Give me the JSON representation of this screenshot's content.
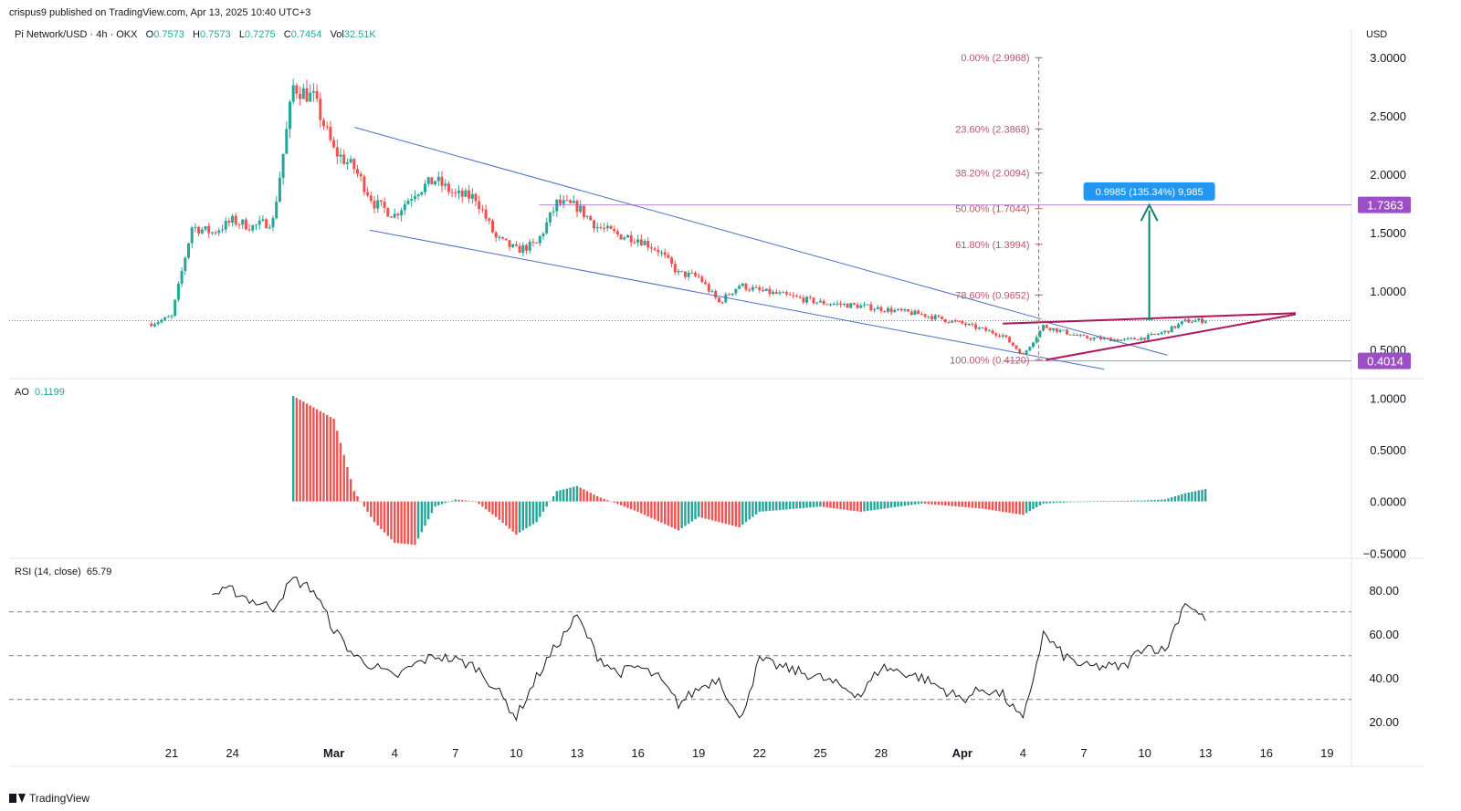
{
  "header": {
    "published": "crispus9 published on TradingView.com, Apr 13, 2025 10:40 UTC+3",
    "symbol": "Pi Network/USD · 4h · OKX",
    "open_label": "O",
    "open": "0.7573",
    "high_label": "H",
    "high": "0.7573",
    "low_label": "L",
    "low": "0.7275",
    "close_label": "C",
    "close": "0.7454",
    "vol_label": "Vol",
    "vol": "32.51K",
    "currency": "USD"
  },
  "brand": "TradingView",
  "colors": {
    "up": "#26a69a",
    "down": "#ef5350",
    "fib": "#b2596b",
    "channel": "#4a6fbf",
    "wedge": "#b0145c",
    "level": "#9c4fc4",
    "arrow": "#12806b",
    "measure": "#2196f3",
    "rsi": "#131722"
  },
  "chart_data": [
    {
      "type": "candlestick",
      "title": "Pi Network/USD · 4h · OKX",
      "x_ticks": [
        "21",
        "24",
        "Mar",
        "4",
        "7",
        "10",
        "13",
        "16",
        "19",
        "22",
        "25",
        "28",
        "Apr",
        "4",
        "7",
        "10",
        "13",
        "16",
        "19"
      ],
      "y_ticks": [
        "3.0000",
        "2.5000",
        "2.0000",
        "1.5000",
        "1.0000",
        "0.5000"
      ],
      "ylim": [
        0.25,
        3.1
      ],
      "price_path": [
        [
          "2025-02-20",
          0.72
        ],
        [
          "2025-02-21",
          0.78
        ],
        [
          "2025-02-22",
          1.55
        ],
        [
          "2025-02-23",
          1.5
        ],
        [
          "2025-02-24",
          1.6
        ],
        [
          "2025-02-25",
          1.55
        ],
        [
          "2025-02-26",
          1.6
        ],
        [
          "2025-02-27",
          2.75
        ],
        [
          "2025-02-28",
          2.65
        ],
        [
          "2025-03-01",
          2.2
        ],
        [
          "2025-03-02",
          2.05
        ],
        [
          "2025-03-03",
          1.75
        ],
        [
          "2025-03-04",
          1.65
        ],
        [
          "2025-03-05",
          1.85
        ],
        [
          "2025-03-06",
          1.95
        ],
        [
          "2025-03-07",
          1.82
        ],
        [
          "2025-03-08",
          1.8
        ],
        [
          "2025-03-09",
          1.45
        ],
        [
          "2025-03-10",
          1.35
        ],
        [
          "2025-03-11",
          1.4
        ],
        [
          "2025-03-12",
          1.75
        ],
        [
          "2025-03-13",
          1.72
        ],
        [
          "2025-03-14",
          1.55
        ],
        [
          "2025-03-15",
          1.48
        ],
        [
          "2025-03-16",
          1.45
        ],
        [
          "2025-03-17",
          1.35
        ],
        [
          "2025-03-18",
          1.15
        ],
        [
          "2025-03-19",
          1.12
        ],
        [
          "2025-03-20",
          0.9
        ],
        [
          "2025-03-21",
          1.05
        ],
        [
          "2025-03-22",
          1.0
        ],
        [
          "2025-03-23",
          0.97
        ],
        [
          "2025-03-25",
          0.9
        ],
        [
          "2025-03-27",
          0.87
        ],
        [
          "2025-03-30",
          0.8
        ],
        [
          "2025-04-01",
          0.72
        ],
        [
          "2025-04-03",
          0.62
        ],
        [
          "2025-04-04",
          0.45
        ],
        [
          "2025-04-05",
          0.7
        ],
        [
          "2025-04-07",
          0.6
        ],
        [
          "2025-04-09",
          0.58
        ],
        [
          "2025-04-10",
          0.6
        ],
        [
          "2025-04-11",
          0.65
        ],
        [
          "2025-04-12",
          0.74
        ],
        [
          "2025-04-13",
          0.75
        ]
      ],
      "last_price": 0.7454,
      "fib_levels": [
        {
          "label": "0.00% (2.9968)",
          "value": 2.9968
        },
        {
          "label": "23.60% (2.3868)",
          "value": 2.3868
        },
        {
          "label": "38.20% (2.0094)",
          "value": 2.0094
        },
        {
          "label": "50.00% (1.7044)",
          "value": 1.7044
        },
        {
          "label": "61.80% (1.3994)",
          "value": 1.3994
        },
        {
          "label": "78.60% (0.9652)",
          "value": 0.9652
        },
        {
          "label": "100.00% (0.4120)",
          "value": 0.412
        }
      ],
      "horizontal_levels": [
        {
          "label": "1.7363",
          "value": 1.7363
        },
        {
          "label": "0.4014",
          "value": 0.4014
        }
      ],
      "measure_label": "0.9985 (135.34%) 9,985",
      "annotations": [
        "falling channel",
        "rising wedge",
        "target arrow to 1.7363"
      ]
    },
    {
      "type": "bar",
      "title": "AO",
      "value_label": "0.1199",
      "y_ticks": [
        "1.0000",
        "0.5000",
        "0.0000",
        "−0.5000"
      ],
      "ylim": [
        -0.55,
        1.1
      ],
      "path": [
        [
          "2025-02-27",
          0.0
        ],
        [
          "2025-02-27",
          1.02
        ],
        [
          "2025-03-01",
          0.8
        ],
        [
          "2025-03-02",
          0.1
        ],
        [
          "2025-03-03",
          -0.2
        ],
        [
          "2025-03-04",
          -0.4
        ],
        [
          "2025-03-05",
          -0.42
        ],
        [
          "2025-03-06",
          -0.05
        ],
        [
          "2025-03-07",
          0.02
        ],
        [
          "2025-03-08",
          0.0
        ],
        [
          "2025-03-09",
          -0.15
        ],
        [
          "2025-03-10",
          -0.32
        ],
        [
          "2025-03-11",
          -0.2
        ],
        [
          "2025-03-12",
          0.1
        ],
        [
          "2025-03-13",
          0.15
        ],
        [
          "2025-03-14",
          0.05
        ],
        [
          "2025-03-16",
          -0.1
        ],
        [
          "2025-03-18",
          -0.28
        ],
        [
          "2025-03-19",
          -0.15
        ],
        [
          "2025-03-21",
          -0.25
        ],
        [
          "2025-03-22",
          -0.1
        ],
        [
          "2025-03-25",
          -0.05
        ],
        [
          "2025-03-27",
          -0.1
        ],
        [
          "2025-03-30",
          -0.02
        ],
        [
          "2025-04-02",
          -0.07
        ],
        [
          "2025-04-04",
          -0.13
        ],
        [
          "2025-04-05",
          -0.02
        ],
        [
          "2025-04-07",
          0.0
        ],
        [
          "2025-04-10",
          0.01
        ],
        [
          "2025-04-11",
          0.02
        ],
        [
          "2025-04-12",
          0.08
        ],
        [
          "2025-04-13",
          0.12
        ]
      ]
    },
    {
      "type": "line",
      "title": "RSI (14, close)",
      "value_label": "65.79",
      "y_ticks": [
        "80.00",
        "60.00",
        "40.00",
        "20.00"
      ],
      "ylim": [
        12,
        92
      ],
      "bands": [
        70,
        50,
        30
      ],
      "values": [
        [
          "2025-02-23",
          78
        ],
        [
          "2025-02-24",
          80
        ],
        [
          "2025-02-25",
          75
        ],
        [
          "2025-02-26",
          72
        ],
        [
          "2025-02-27",
          85
        ],
        [
          "2025-02-28",
          80
        ],
        [
          "2025-03-01",
          62
        ],
        [
          "2025-03-02",
          50
        ],
        [
          "2025-03-03",
          45
        ],
        [
          "2025-03-04",
          40
        ],
        [
          "2025-03-05",
          46
        ],
        [
          "2025-03-06",
          50
        ],
        [
          "2025-03-07",
          48
        ],
        [
          "2025-03-08",
          45
        ],
        [
          "2025-03-09",
          35
        ],
        [
          "2025-03-10",
          22
        ],
        [
          "2025-03-11",
          40
        ],
        [
          "2025-03-12",
          55
        ],
        [
          "2025-03-13",
          68
        ],
        [
          "2025-03-14",
          50
        ],
        [
          "2025-03-15",
          42
        ],
        [
          "2025-03-16",
          45
        ],
        [
          "2025-03-17",
          40
        ],
        [
          "2025-03-18",
          28
        ],
        [
          "2025-03-19",
          35
        ],
        [
          "2025-03-20",
          40
        ],
        [
          "2025-03-21",
          20
        ],
        [
          "2025-03-22",
          48
        ],
        [
          "2025-03-23",
          45
        ],
        [
          "2025-03-25",
          40
        ],
        [
          "2025-03-27",
          32
        ],
        [
          "2025-03-28",
          45
        ],
        [
          "2025-03-30",
          40
        ],
        [
          "2025-04-01",
          30
        ],
        [
          "2025-04-02",
          35
        ],
        [
          "2025-04-03",
          32
        ],
        [
          "2025-04-04",
          20
        ],
        [
          "2025-04-05",
          60
        ],
        [
          "2025-04-06",
          50
        ],
        [
          "2025-04-07",
          45
        ],
        [
          "2025-04-09",
          45
        ],
        [
          "2025-04-10",
          55
        ],
        [
          "2025-04-11",
          52
        ],
        [
          "2025-04-12",
          75
        ],
        [
          "2025-04-13",
          66
        ]
      ]
    }
  ]
}
